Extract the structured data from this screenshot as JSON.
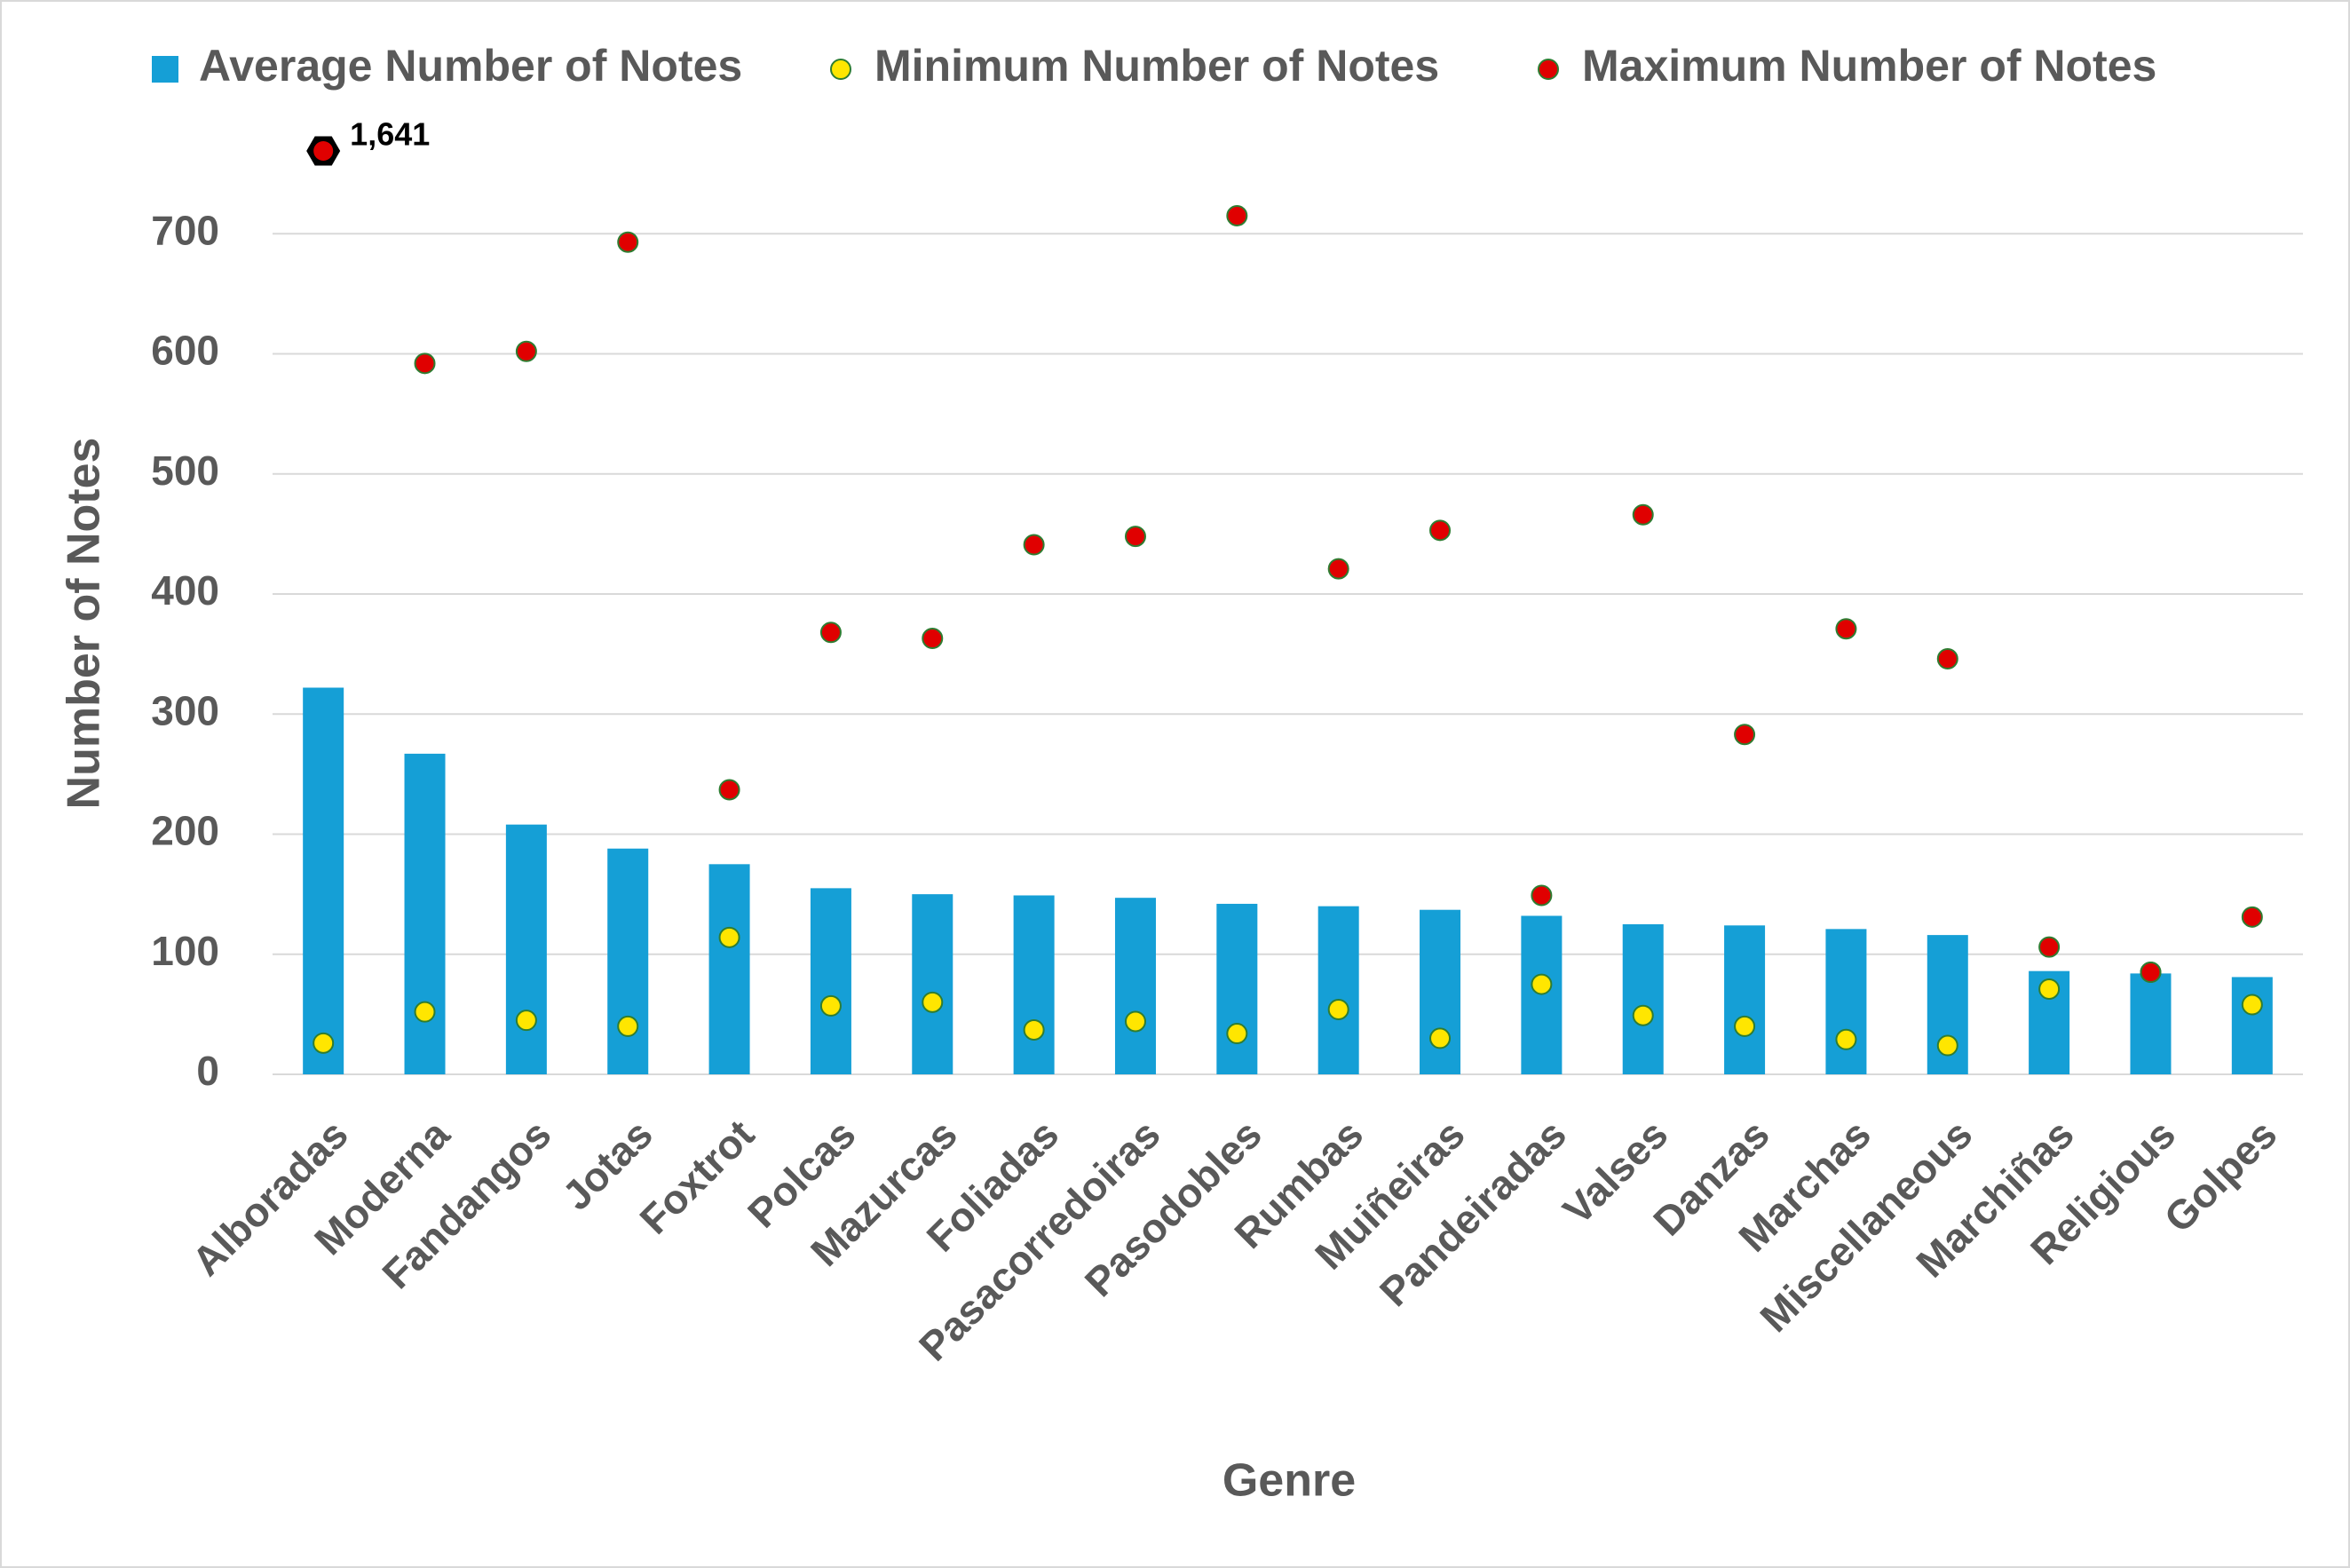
{
  "chart_data": {
    "type": "bar+scatter",
    "x_label": "Genre",
    "y_label": "Number of Notes",
    "categories": [
      "Alboradas",
      "Moderna",
      "Fandangos",
      "Jotas",
      "Foxtrot",
      "Polcas",
      "Mazurcas",
      "Foliadas",
      "Pasacorredoiras",
      "Pasodobles",
      "Rumbas",
      "Muiñeiras",
      "Pandeiradas",
      "Valses",
      "Danzas",
      "Marchas",
      "Miscellaneous",
      "Marchiñas",
      "Religious",
      "Golpes"
    ],
    "series": [
      {
        "name": "Average Number of Notes",
        "type": "bar",
        "color": "#159fd6",
        "values": [
          322,
          267,
          208,
          188,
          175,
          155,
          150,
          149,
          147,
          142,
          140,
          137,
          132,
          125,
          124,
          121,
          116,
          86,
          84,
          81
        ]
      },
      {
        "name": "Minimum Number of Notes",
        "type": "scatter",
        "color": "#ffe600",
        "values": [
          26,
          52,
          45,
          40,
          114,
          57,
          60,
          37,
          44,
          34,
          54,
          30,
          75,
          49,
          40,
          29,
          24,
          71,
          85,
          58
        ]
      },
      {
        "name": "Maximum Number of Notes",
        "type": "scatter",
        "color": "#e00000",
        "values": [
          1641,
          592,
          602,
          693,
          237,
          368,
          363,
          441,
          448,
          715,
          421,
          453,
          149,
          466,
          283,
          371,
          346,
          106,
          85,
          131
        ],
        "value_labels": [
          "1,641",
          null,
          null,
          null,
          null,
          null,
          null,
          null,
          null,
          null,
          null,
          null,
          null,
          null,
          null,
          null,
          null,
          null,
          null,
          null
        ]
      }
    ],
    "ylim": [
      0,
      800
    ],
    "yticks": [
      0,
      100,
      200,
      300,
      400,
      500,
      600,
      700
    ],
    "grid": true
  }
}
